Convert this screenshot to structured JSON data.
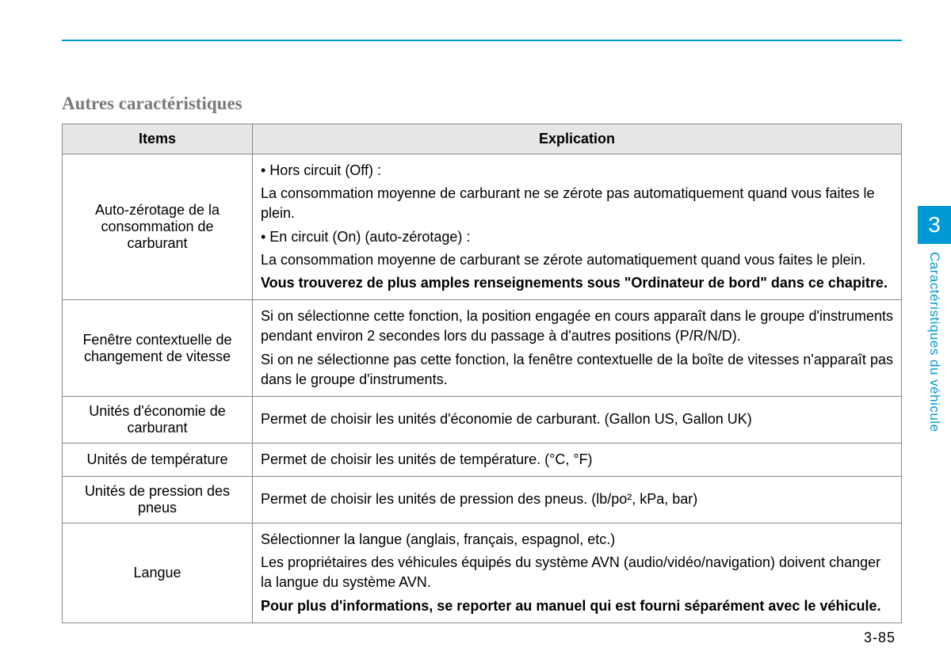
{
  "section_title": "Autres caractéristiques",
  "table": {
    "headers": {
      "items": "Items",
      "explication": "Explication"
    },
    "rows": [
      {
        "item": "Auto-zérotage de la consommation de carburant",
        "lines": [
          {
            "text": "• Hors circuit (Off) :",
            "bold": false
          },
          {
            "text": "La consommation moyenne de carburant ne se zérote pas automatiquement quand vous faites le plein.",
            "bold": false
          },
          {
            "text": "• En circuit (On) (auto-zérotage) :",
            "bold": false
          },
          {
            "text": "La consommation moyenne de carburant se zérote automatiquement quand vous faites le plein.",
            "bold": false
          },
          {
            "text": "Vous trouverez de plus amples renseignements sous \"Ordinateur de bord\" dans ce chapitre.",
            "bold": true
          }
        ]
      },
      {
        "item": "Fenêtre contextuelle de changement de vitesse",
        "lines": [
          {
            "text": "Si on sélectionne cette fonction, la position engagée en cours apparaît dans le groupe d'instruments pendant environ 2 secondes lors du passage à d'autres positions (P/R/N/D).",
            "bold": false,
            "justify": true
          },
          {
            "text": "Si on ne sélectionne pas cette fonction, la fenêtre contextuelle de la boîte de vitesses n'apparaît pas dans le groupe d'instruments.",
            "bold": false,
            "justify": true
          }
        ]
      },
      {
        "item": "Unités d'économie de carburant",
        "lines": [
          {
            "text": "Permet de choisir les unités d'économie de carburant. (Gallon US, Gallon UK)",
            "bold": false
          }
        ]
      },
      {
        "item": "Unités de température",
        "lines": [
          {
            "text": "Permet de choisir les unités de température. (°C, °F)",
            "bold": false
          }
        ]
      },
      {
        "item": "Unités de pression des pneus",
        "lines": [
          {
            "text": "Permet de choisir les unités de pression des pneus. (lb/po², kPa, bar)",
            "bold": false
          }
        ]
      },
      {
        "item": "Langue",
        "lines": [
          {
            "text": "Sélectionner la langue (anglais, français, espagnol, etc.)",
            "bold": false
          },
          {
            "text": "Les propriétaires des véhicules équipés du système AVN (audio/vidéo/navigation) doivent changer la langue du système AVN.",
            "bold": false
          },
          {
            "text": "Pour plus d'informations, se reporter au manuel qui est fourni séparément avec le véhicule.",
            "bold": true
          }
        ]
      }
    ]
  },
  "side_tab": {
    "number": "3",
    "label": "Caractéristiques du véhicule"
  },
  "page_number": "3-85",
  "colors": {
    "accent": "#0099d8",
    "title_gray": "#7a7a7a",
    "header_bg": "#e6e6e6",
    "border": "#888888"
  }
}
